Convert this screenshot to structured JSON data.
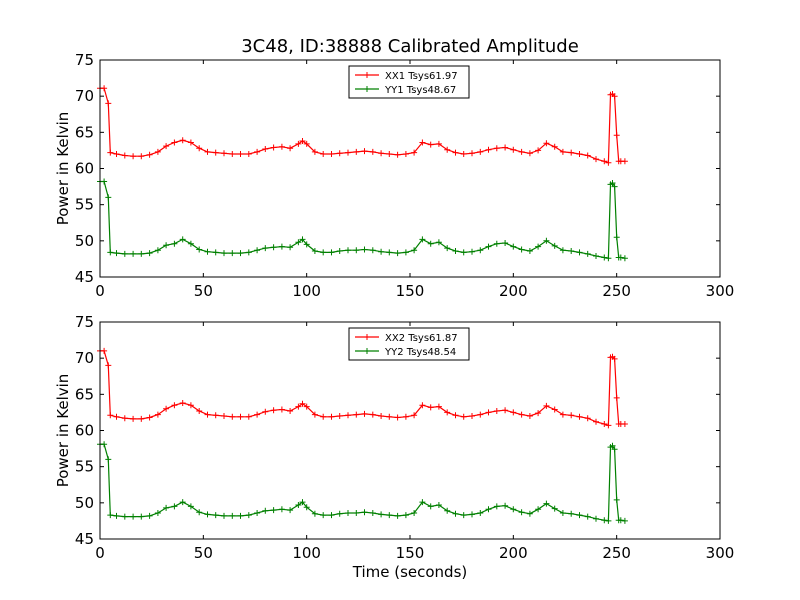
{
  "figure": {
    "title": "3C48, ID:38888 Calibrated Amplitude",
    "xlabel": "Time (seconds)"
  },
  "colors": {
    "xx": "#ff0000",
    "yy": "#008000"
  },
  "chart_data": [
    {
      "type": "line",
      "title": "3C48, ID:38888 Calibrated Amplitude",
      "xlabel": "",
      "ylabel": "Power in Kelvin",
      "xlim": [
        0,
        300
      ],
      "ylim": [
        45,
        75
      ],
      "xticks": [
        0,
        50,
        100,
        150,
        200,
        250,
        300
      ],
      "yticks": [
        45,
        50,
        55,
        60,
        65,
        70,
        75
      ],
      "grid": false,
      "legend": "top-center",
      "series": [
        {
          "name": "XX1 Tsys61.97",
          "color": "#ff0000",
          "x": [
            0,
            2,
            4,
            5,
            8,
            12,
            16,
            20,
            24,
            28,
            32,
            36,
            40,
            44,
            48,
            52,
            56,
            60,
            64,
            68,
            72,
            76,
            80,
            84,
            88,
            92,
            96,
            98,
            100,
            104,
            108,
            112,
            116,
            120,
            124,
            128,
            132,
            136,
            140,
            144,
            148,
            152,
            156,
            160,
            164,
            168,
            172,
            176,
            180,
            184,
            188,
            192,
            196,
            200,
            204,
            208,
            212,
            216,
            220,
            224,
            228,
            232,
            236,
            240,
            244,
            246,
            247,
            248,
            249,
            250,
            251,
            252,
            254
          ],
          "y": [
            71.1,
            71.1,
            69.0,
            62.2,
            62.0,
            61.8,
            61.7,
            61.7,
            61.9,
            62.3,
            63.1,
            63.6,
            63.9,
            63.6,
            62.8,
            62.3,
            62.2,
            62.1,
            62.0,
            62.0,
            62.0,
            62.3,
            62.7,
            62.9,
            63.0,
            62.8,
            63.4,
            63.8,
            63.4,
            62.3,
            62.0,
            62.0,
            62.1,
            62.2,
            62.3,
            62.4,
            62.3,
            62.1,
            62.0,
            61.9,
            62.0,
            62.2,
            63.6,
            63.3,
            63.4,
            62.6,
            62.2,
            62.0,
            62.1,
            62.3,
            62.6,
            62.8,
            62.9,
            62.6,
            62.3,
            62.1,
            62.5,
            63.5,
            63.0,
            62.3,
            62.2,
            62.0,
            61.8,
            61.3,
            61.0,
            60.8,
            70.2,
            70.3,
            70.0,
            64.6,
            61.0,
            61.0,
            61.0
          ]
        },
        {
          "name": "YY1 Tsys48.67",
          "color": "#008000",
          "x": [
            0,
            2,
            4,
            5,
            8,
            12,
            16,
            20,
            24,
            28,
            32,
            36,
            40,
            44,
            48,
            52,
            56,
            60,
            64,
            68,
            72,
            76,
            80,
            84,
            88,
            92,
            96,
            98,
            100,
            104,
            108,
            112,
            116,
            120,
            124,
            128,
            132,
            136,
            140,
            144,
            148,
            152,
            156,
            160,
            164,
            168,
            172,
            176,
            180,
            184,
            188,
            192,
            196,
            200,
            204,
            208,
            212,
            216,
            220,
            224,
            228,
            232,
            236,
            240,
            244,
            246,
            247,
            248,
            249,
            250,
            251,
            252,
            254
          ],
          "y": [
            58.2,
            58.2,
            56.0,
            48.4,
            48.3,
            48.2,
            48.2,
            48.2,
            48.3,
            48.7,
            49.4,
            49.6,
            50.2,
            49.6,
            48.8,
            48.5,
            48.4,
            48.3,
            48.3,
            48.3,
            48.4,
            48.7,
            49.0,
            49.1,
            49.2,
            49.1,
            49.8,
            50.2,
            49.5,
            48.6,
            48.4,
            48.4,
            48.6,
            48.7,
            48.7,
            48.8,
            48.7,
            48.5,
            48.4,
            48.3,
            48.4,
            48.7,
            50.2,
            49.6,
            49.8,
            49.0,
            48.6,
            48.4,
            48.5,
            48.7,
            49.2,
            49.6,
            49.7,
            49.2,
            48.8,
            48.6,
            49.2,
            50.0,
            49.3,
            48.7,
            48.6,
            48.4,
            48.2,
            47.9,
            47.7,
            47.6,
            57.8,
            58.0,
            57.5,
            50.5,
            47.7,
            47.7,
            47.6
          ]
        }
      ]
    },
    {
      "type": "line",
      "xlabel": "Time (seconds)",
      "ylabel": "Power in Kelvin",
      "xlim": [
        0,
        300
      ],
      "ylim": [
        45,
        75
      ],
      "xticks": [
        0,
        50,
        100,
        150,
        200,
        250,
        300
      ],
      "yticks": [
        45,
        50,
        55,
        60,
        65,
        70,
        75
      ],
      "grid": false,
      "legend": "top-center",
      "series": [
        {
          "name": "XX2 Tsys61.87",
          "color": "#ff0000",
          "x": [
            0,
            2,
            4,
            5,
            8,
            12,
            16,
            20,
            24,
            28,
            32,
            36,
            40,
            44,
            48,
            52,
            56,
            60,
            64,
            68,
            72,
            76,
            80,
            84,
            88,
            92,
            96,
            98,
            100,
            104,
            108,
            112,
            116,
            120,
            124,
            128,
            132,
            136,
            140,
            144,
            148,
            152,
            156,
            160,
            164,
            168,
            172,
            176,
            180,
            184,
            188,
            192,
            196,
            200,
            204,
            208,
            212,
            216,
            220,
            224,
            228,
            232,
            236,
            240,
            244,
            246,
            247,
            248,
            249,
            250,
            251,
            252,
            254
          ],
          "y": [
            71.0,
            71.0,
            69.0,
            62.1,
            61.9,
            61.7,
            61.6,
            61.6,
            61.8,
            62.2,
            63.0,
            63.5,
            63.8,
            63.5,
            62.7,
            62.2,
            62.1,
            62.0,
            61.9,
            61.9,
            61.9,
            62.2,
            62.6,
            62.8,
            62.9,
            62.7,
            63.3,
            63.7,
            63.3,
            62.2,
            61.9,
            61.9,
            62.0,
            62.1,
            62.2,
            62.3,
            62.2,
            62.0,
            61.9,
            61.8,
            61.9,
            62.1,
            63.5,
            63.2,
            63.3,
            62.5,
            62.1,
            61.9,
            62.0,
            62.2,
            62.5,
            62.7,
            62.8,
            62.5,
            62.2,
            62.0,
            62.4,
            63.4,
            62.9,
            62.2,
            62.1,
            61.9,
            61.7,
            61.2,
            60.9,
            60.7,
            70.1,
            70.2,
            69.9,
            64.5,
            60.9,
            60.9,
            60.9
          ]
        },
        {
          "name": "YY2 Tsys48.54",
          "color": "#008000",
          "x": [
            0,
            2,
            4,
            5,
            8,
            12,
            16,
            20,
            24,
            28,
            32,
            36,
            40,
            44,
            48,
            52,
            56,
            60,
            64,
            68,
            72,
            76,
            80,
            84,
            88,
            92,
            96,
            98,
            100,
            104,
            108,
            112,
            116,
            120,
            124,
            128,
            132,
            136,
            140,
            144,
            148,
            152,
            156,
            160,
            164,
            168,
            172,
            176,
            180,
            184,
            188,
            192,
            196,
            200,
            204,
            208,
            212,
            216,
            220,
            224,
            228,
            232,
            236,
            240,
            244,
            246,
            247,
            248,
            249,
            250,
            251,
            252,
            254
          ],
          "y": [
            58.1,
            58.1,
            56.0,
            48.3,
            48.2,
            48.1,
            48.1,
            48.1,
            48.2,
            48.6,
            49.3,
            49.5,
            50.1,
            49.5,
            48.7,
            48.4,
            48.3,
            48.2,
            48.2,
            48.2,
            48.3,
            48.6,
            48.9,
            49.0,
            49.1,
            49.0,
            49.7,
            50.1,
            49.4,
            48.5,
            48.3,
            48.3,
            48.5,
            48.6,
            48.6,
            48.7,
            48.6,
            48.4,
            48.3,
            48.2,
            48.3,
            48.6,
            50.1,
            49.5,
            49.7,
            48.9,
            48.5,
            48.3,
            48.4,
            48.6,
            49.1,
            49.5,
            49.6,
            49.1,
            48.7,
            48.5,
            49.1,
            49.9,
            49.2,
            48.6,
            48.5,
            48.3,
            48.1,
            47.8,
            47.6,
            47.5,
            57.7,
            57.9,
            57.4,
            50.4,
            47.6,
            47.6,
            47.5
          ]
        }
      ]
    }
  ]
}
